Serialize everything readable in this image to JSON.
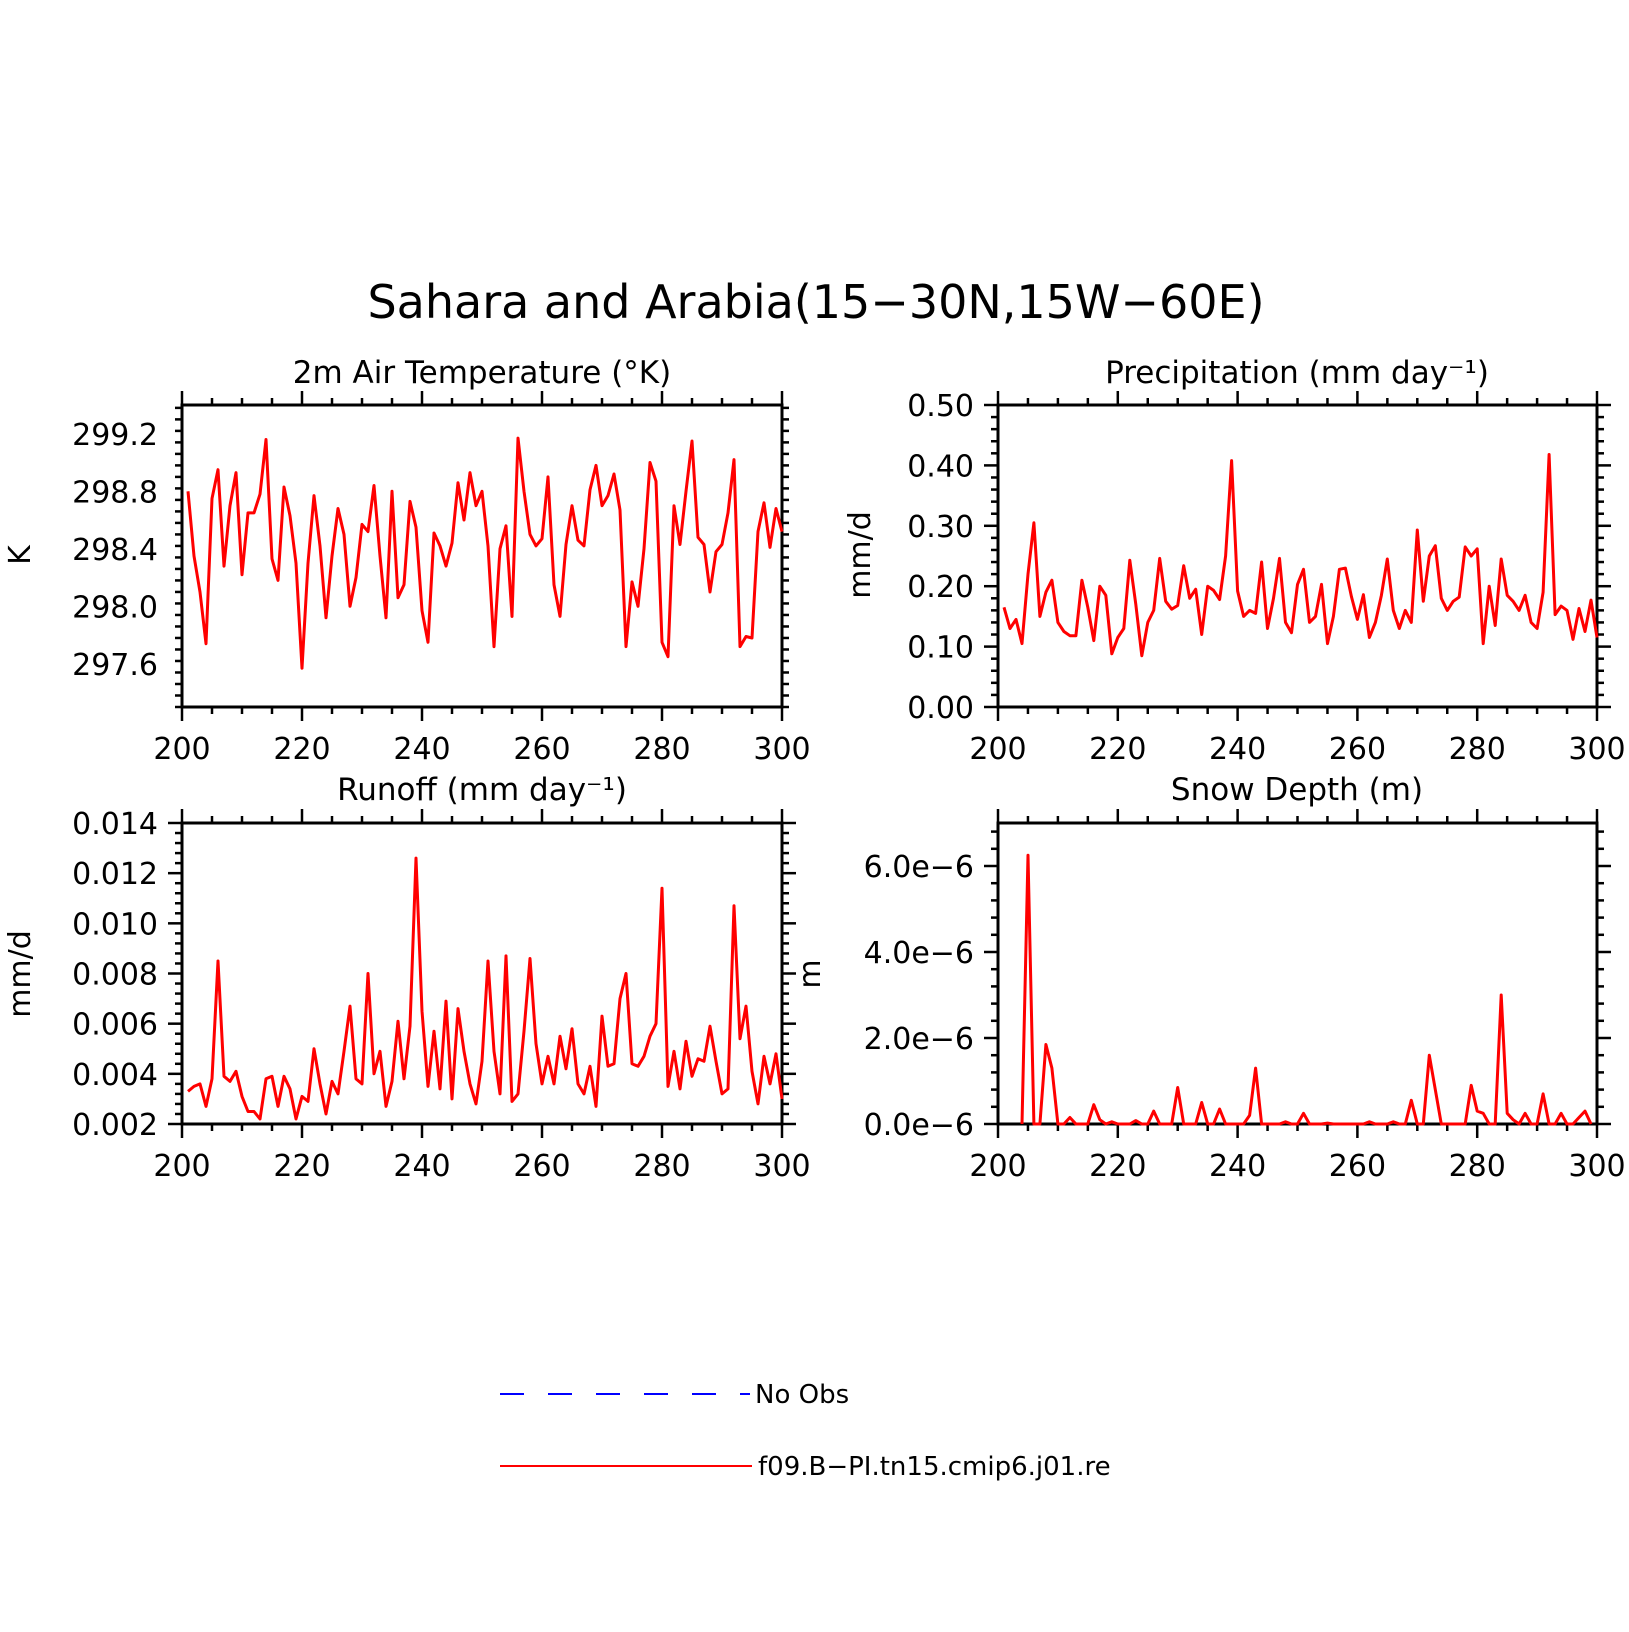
{
  "figure": {
    "title": "Sahara and Arabia(15−30N,15W−60E)"
  },
  "colors": {
    "model": "#ff0000",
    "obs": "#0000ff",
    "axes": "#000000"
  },
  "legend": {
    "items": [
      {
        "label": "No Obs",
        "color": "#0000ff",
        "style": "dashed"
      },
      {
        "label": "f09.B−PI.tn15.cmip6.j01.re",
        "color": "#ff0000",
        "style": "solid"
      }
    ]
  },
  "chart_data": [
    {
      "type": "line",
      "title": "2m Air Temperature (°K)",
      "ylabel": "K",
      "xlim": [
        200,
        300
      ],
      "ylim": [
        297.3,
        299.4
      ],
      "xticks": [
        200,
        220,
        240,
        260,
        280,
        300
      ],
      "yticks": [
        297.6,
        298.0,
        298.4,
        298.8,
        299.2
      ],
      "yticklabels": [
        "297.6",
        "298.0",
        "298.4",
        "298.8",
        "299.2"
      ],
      "series": [
        {
          "x_start": 201,
          "values": [
            298.8,
            298.35,
            298.1,
            297.74,
            298.75,
            298.95,
            298.28,
            298.7,
            298.93,
            298.22,
            298.65,
            298.65,
            298.78,
            299.16,
            298.33,
            298.18,
            298.83,
            298.63,
            298.3,
            297.57,
            298.3,
            298.77,
            298.42,
            297.92,
            298.35,
            298.68,
            298.5,
            298.0,
            298.2,
            298.57,
            298.52,
            298.84,
            298.35,
            297.92,
            298.8,
            298.06,
            298.15,
            298.73,
            298.55,
            297.97,
            297.75,
            298.51,
            298.42,
            298.28,
            298.44,
            298.86,
            298.6,
            298.93,
            298.7,
            298.8,
            298.42,
            297.72,
            298.4,
            298.56,
            297.93,
            299.17,
            298.8,
            298.5,
            298.42,
            298.47,
            298.9,
            298.15,
            297.93,
            298.43,
            298.7,
            298.46,
            298.42,
            298.81,
            298.98,
            298.7,
            298.77,
            298.92,
            298.67,
            297.72,
            298.17,
            298.0,
            298.4,
            299.0,
            298.87,
            297.75,
            297.65,
            298.7,
            298.43,
            298.8,
            299.15,
            298.48,
            298.43,
            298.1,
            298.38,
            298.43,
            298.65,
            299.02,
            297.72,
            297.79,
            297.78,
            298.52,
            298.72,
            298.41,
            298.68,
            298.52
          ]
        }
      ]
    },
    {
      "type": "line",
      "title": "Precipitation (mm day⁻¹)",
      "ylabel": "mm/d",
      "xlim": [
        200,
        300
      ],
      "ylim": [
        0.0,
        0.5
      ],
      "xticks": [
        200,
        220,
        240,
        260,
        280,
        300
      ],
      "yticks": [
        0.0,
        0.1,
        0.2,
        0.3,
        0.4,
        0.5
      ],
      "yticklabels": [
        "0.00",
        "0.10",
        "0.20",
        "0.30",
        "0.40",
        "0.50"
      ],
      "series": [
        {
          "x_start": 201,
          "values": [
            0.165,
            0.13,
            0.145,
            0.105,
            0.22,
            0.305,
            0.15,
            0.19,
            0.21,
            0.14,
            0.125,
            0.118,
            0.118,
            0.21,
            0.165,
            0.11,
            0.2,
            0.185,
            0.088,
            0.115,
            0.13,
            0.243,
            0.17,
            0.085,
            0.14,
            0.16,
            0.246,
            0.175,
            0.162,
            0.168,
            0.234,
            0.18,
            0.195,
            0.12,
            0.2,
            0.193,
            0.178,
            0.25,
            0.408,
            0.192,
            0.15,
            0.16,
            0.155,
            0.24,
            0.13,
            0.18,
            0.246,
            0.14,
            0.123,
            0.203,
            0.228,
            0.14,
            0.15,
            0.203,
            0.105,
            0.15,
            0.228,
            0.23,
            0.183,
            0.145,
            0.186,
            0.115,
            0.14,
            0.185,
            0.245,
            0.16,
            0.13,
            0.16,
            0.14,
            0.293,
            0.175,
            0.25,
            0.267,
            0.18,
            0.16,
            0.175,
            0.182,
            0.265,
            0.25,
            0.262,
            0.105,
            0.2,
            0.135,
            0.245,
            0.185,
            0.175,
            0.16,
            0.185,
            0.14,
            0.13,
            0.19,
            0.418,
            0.153,
            0.167,
            0.16,
            0.112,
            0.163,
            0.125,
            0.177,
            0.115
          ]
        }
      ]
    },
    {
      "type": "line",
      "title": "Runoff (mm day⁻¹)",
      "ylabel": "mm/d",
      "xlim": [
        200,
        300
      ],
      "ylim": [
        0.002,
        0.014
      ],
      "xticks": [
        200,
        220,
        240,
        260,
        280,
        300
      ],
      "yticks": [
        0.002,
        0.004,
        0.006,
        0.008,
        0.01,
        0.012,
        0.014
      ],
      "yticklabels": [
        "0.002",
        "0.004",
        "0.006",
        "0.008",
        "0.010",
        "0.012",
        "0.014"
      ],
      "series": [
        {
          "x_start": 201,
          "values": [
            0.0033,
            0.0035,
            0.0036,
            0.0027,
            0.0038,
            0.0085,
            0.0039,
            0.0037,
            0.0041,
            0.0031,
            0.0025,
            0.0025,
            0.0022,
            0.0038,
            0.0039,
            0.0027,
            0.0039,
            0.0034,
            0.0022,
            0.0031,
            0.0029,
            0.005,
            0.0036,
            0.0024,
            0.0037,
            0.0032,
            0.0049,
            0.0067,
            0.0038,
            0.0036,
            0.008,
            0.004,
            0.0049,
            0.0027,
            0.0037,
            0.0061,
            0.0038,
            0.0059,
            0.0126,
            0.0065,
            0.0035,
            0.0057,
            0.0034,
            0.0069,
            0.003,
            0.0066,
            0.0049,
            0.0036,
            0.0028,
            0.0045,
            0.0085,
            0.0049,
            0.0032,
            0.0087,
            0.0029,
            0.0032,
            0.0057,
            0.0086,
            0.0052,
            0.0036,
            0.0047,
            0.0036,
            0.0055,
            0.0042,
            0.0058,
            0.0036,
            0.0032,
            0.0043,
            0.0027,
            0.0063,
            0.0043,
            0.0044,
            0.007,
            0.008,
            0.0044,
            0.0043,
            0.0047,
            0.0055,
            0.006,
            0.0114,
            0.0035,
            0.0049,
            0.0034,
            0.0053,
            0.0039,
            0.0046,
            0.0045,
            0.0059,
            0.0045,
            0.0032,
            0.0034,
            0.0107,
            0.0054,
            0.0067,
            0.0041,
            0.0028,
            0.0047,
            0.0036,
            0.0048,
            0.003
          ]
        }
      ]
    },
    {
      "type": "line",
      "title": "Snow Depth (m)",
      "ylabel": "m",
      "xlim": [
        200,
        300
      ],
      "ylim": [
        0.0,
        7e-06
      ],
      "xticks": [
        200,
        220,
        240,
        260,
        280,
        300
      ],
      "yticks": [
        0.0,
        2e-06,
        4e-06,
        6e-06
      ],
      "yticklabels": [
        "0.0e−6",
        "2.0e−6",
        "4.0e−6",
        "6.0e−6"
      ],
      "series": [
        {
          "x_start": 204,
          "values": [
            0.0,
            6.25e-06,
            0.0,
            0.0,
            1.85e-06,
            1.3e-06,
            0.0,
            0.0,
            1.5e-07,
            0.0,
            0.0,
            0.0,
            4.5e-07,
            1e-07,
            0.0,
            5e-08,
            0.0,
            0.0,
            0.0,
            8e-08,
            0.0,
            0.0,
            3e-07,
            0.0,
            0.0,
            0.0,
            8.5e-07,
            0.0,
            0.0,
            0.0,
            5e-07,
            0.0,
            0.0,
            3.5e-07,
            0.0,
            0.0,
            0.0,
            0.0,
            2e-07,
            1.3e-06,
            0.0,
            0.0,
            0.0,
            0.0,
            5e-08,
            0.0,
            0.0,
            2.5e-07,
            0.0,
            0.0,
            0.0,
            2e-08,
            0.0,
            0.0,
            0.0,
            0.0,
            0.0,
            0.0,
            5e-08,
            0.0,
            0.0,
            0.0,
            5e-08,
            0.0,
            0.0,
            5.5e-07,
            0.0,
            0.0,
            1.6e-06,
            8e-07,
            0.0,
            0.0,
            0.0,
            0.0,
            0.0,
            9e-07,
            3e-07,
            2.5e-07,
            0.0,
            0.0,
            3e-06,
            2.5e-07,
            1e-07,
            0.0,
            2.5e-07,
            0.0,
            0.0,
            7e-07,
            0.0,
            0.0,
            2.5e-07,
            0.0,
            0.0,
            1.5e-07,
            3e-07,
            0.0
          ]
        }
      ]
    }
  ]
}
